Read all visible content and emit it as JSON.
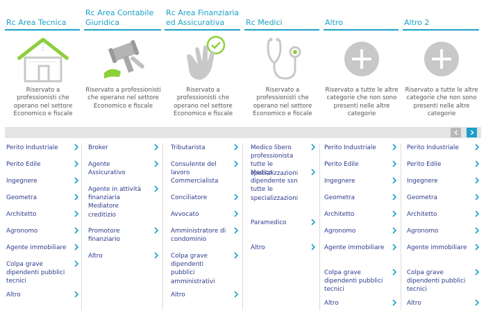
{
  "colors": {
    "accent": "#1aa0c8",
    "link": "#2b3a8c",
    "icon_gray": "#c8c8c8",
    "icon_green": "#8ccf3a"
  },
  "categories": [
    {
      "title": "Rc Area Tecnica",
      "icon": "house-icon",
      "description": "Riservato a professionisti che operano nel settore Economico e fiscale"
    },
    {
      "title": "Rc Area Contabile Giuridica",
      "icon": "gavel-icon",
      "description": "Riservato a professionisti che operano nel settore Economico e fiscale"
    },
    {
      "title": "Rc Area Finanziaria ed Assicurativa",
      "icon": "hand-check-icon",
      "description": "Riservato a professionisti che operano nel settore Economico e fiscale"
    },
    {
      "title": "Rc Medici",
      "icon": "stethoscope-icon",
      "description": "Riservato a professionisti che operano nel settore Economico e fiscale"
    },
    {
      "title": "Altro",
      "icon": "plus-circle-icon",
      "description": "Riservato a tutte le altre categorie che non sono presenti nelle altre categorie"
    },
    {
      "title": "Altro 2",
      "icon": "plus-circle-icon",
      "description": "Riservato a tutte le altre categorie che non sono presenti nelle altre categorie"
    }
  ],
  "lists": [
    [
      "Perito Industriale",
      "Perito Edile",
      "Ingegnere",
      "Geometra",
      "Architetto",
      "Agronomo",
      "Agente immobiliare",
      "Colpa grave dipendenti pubblici tecnici",
      "Altro"
    ],
    [
      "Broker",
      "Agente Assicurativo",
      "Agente in attività finanziaria Mediatore creditizio",
      "Promotore finanziario",
      "Altro"
    ],
    [
      "Tributarista",
      "Consulente del lavoro Commercialista",
      "Conciliatore",
      "Avvocato",
      "Amministratore di condominio",
      "Colpa grave dipendenti pubblici amministrativi",
      "Altro"
    ],
    [
      "Medico libero professionista tutte le specializzazioni",
      "Medico dipendente ssn tutte le specializzazioni",
      "Paramedico",
      "Altro"
    ],
    [
      "Perito Industriale",
      "Perito Edile",
      "Ingegnere",
      "Geometra",
      "Architetto",
      "Agronomo",
      "Agente immobiliare",
      "Colpa grave dipendenti pubblici tecnici",
      "Altro"
    ],
    [
      "Perito Industriale",
      "Perito Edile",
      "Ingegnere",
      "Geometra",
      "Architetto",
      "Agronomo",
      "Agente immobiliare",
      "Colpa grave dipendenti pubblici tecnici",
      "Altro"
    ]
  ],
  "slider": {
    "prev_icon": "chevron-left-icon",
    "next_icon": "chevron-right-icon"
  }
}
